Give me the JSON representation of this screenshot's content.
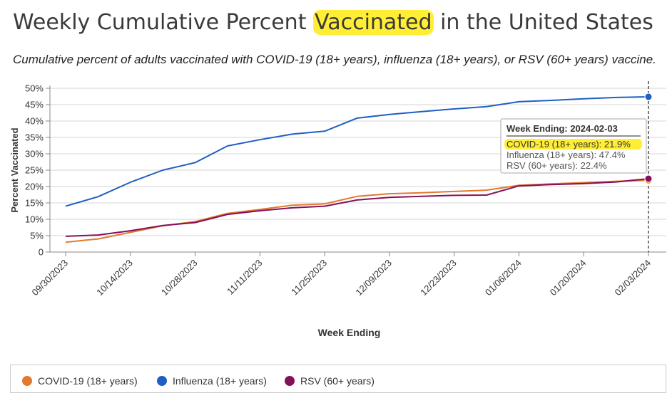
{
  "header": {
    "title_before": "Weekly Cumulative Percent ",
    "title_highlight": "Vaccinated",
    "title_after": " in the United States",
    "subtitle": "Cumulative percent of adults vaccinated with COVID-19 (18+ years), influenza (18+ years), or RSV (60+ years) vaccine."
  },
  "chart_data": {
    "type": "line",
    "xlabel": "Week Ending",
    "ylabel": "Percent Vaccinated",
    "ylim": [
      0,
      50
    ],
    "yticks": [
      "0",
      "5%",
      "10%",
      "15%",
      "20%",
      "25%",
      "30%",
      "35%",
      "40%",
      "45%",
      "50%"
    ],
    "grid": true,
    "legend_position": "bottom",
    "x_tick_labels": [
      "09/30/2023",
      "10/14/2023",
      "10/28/2023",
      "11/11/2023",
      "11/25/2023",
      "12/09/2023",
      "12/23/2023",
      "01/06/2024",
      "01/20/2024",
      "02/03/2024"
    ],
    "x": [
      "09/30/2023",
      "10/07/2023",
      "10/14/2023",
      "10/21/2023",
      "10/28/2023",
      "11/04/2023",
      "11/11/2023",
      "11/18/2023",
      "11/25/2023",
      "12/02/2023",
      "12/09/2023",
      "12/16/2023",
      "12/23/2023",
      "12/30/2023",
      "01/06/2024",
      "01/13/2024",
      "01/20/2024",
      "01/27/2024",
      "02/03/2024"
    ],
    "series": [
      {
        "name": "COVID-19 (18+ years)",
        "color": "#e07a2e",
        "values": [
          3.0,
          4.0,
          6.0,
          8.0,
          9.3,
          11.8,
          13.0,
          14.3,
          14.7,
          17.0,
          17.8,
          18.1,
          18.5,
          18.9,
          20.4,
          20.8,
          21.2,
          21.6,
          21.9
        ]
      },
      {
        "name": "Influenza (18+ years)",
        "color": "#1f5fc4",
        "values": [
          14.0,
          16.9,
          21.3,
          25.0,
          27.3,
          32.4,
          34.3,
          36.0,
          36.9,
          40.9,
          42.0,
          42.9,
          43.7,
          44.4,
          45.9,
          46.3,
          46.8,
          47.2,
          47.4
        ]
      },
      {
        "name": "RSV (60+ years)",
        "color": "#85105a",
        "values": [
          4.8,
          5.2,
          6.5,
          8.1,
          9.0,
          11.5,
          12.6,
          13.5,
          14.0,
          15.9,
          16.7,
          17.0,
          17.3,
          17.4,
          20.2,
          20.6,
          20.9,
          21.4,
          22.4
        ]
      }
    ],
    "tooltip": {
      "heading": "Week Ending: 2024-02-03",
      "lines": [
        "COVID-19 (18+ years): 21.9%",
        "Influenza (18+ years): 47.4%",
        "RSV (60+ years): 22.4%"
      ],
      "highlight_color": "#ffee33"
    }
  }
}
